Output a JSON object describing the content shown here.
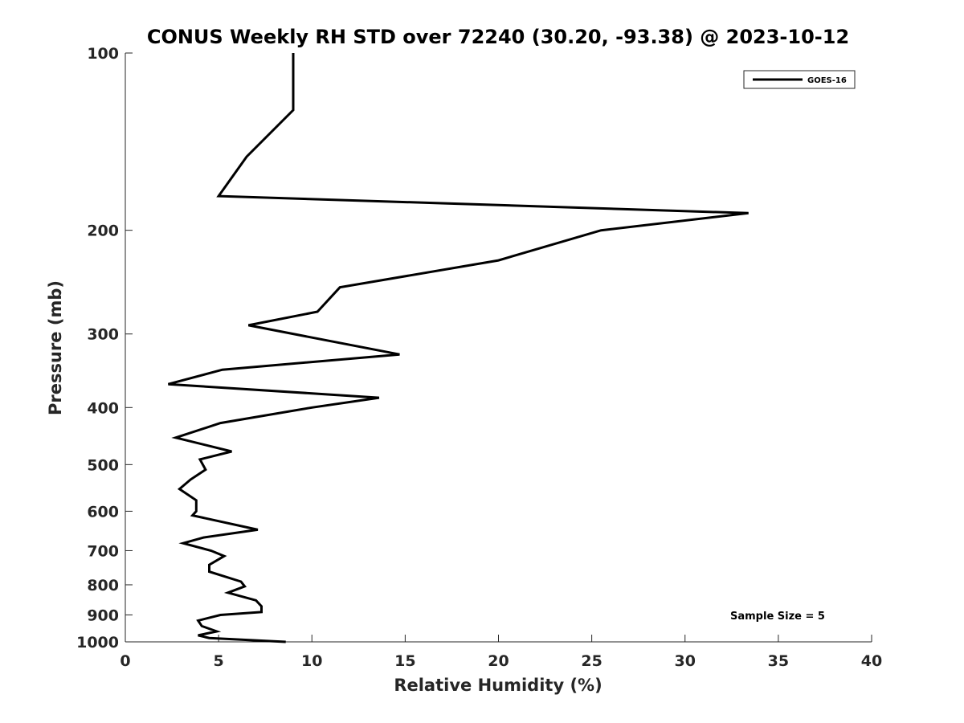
{
  "chart_data": {
    "type": "line",
    "title": "CONUS Weekly RH STD over 72240 (30.20, -93.38) @ 2023-10-12",
    "xlabel": "Relative Humidity (%)",
    "ylabel": "Pressure (mb)",
    "xlim": [
      0,
      40
    ],
    "ylim": [
      100,
      1000
    ],
    "yscale": "log",
    "y_reversed": true,
    "xticks": [
      0,
      5,
      10,
      15,
      20,
      25,
      30,
      35,
      40
    ],
    "yticks": [
      100,
      200,
      300,
      400,
      500,
      600,
      700,
      800,
      900,
      1000
    ],
    "grid": false,
    "legend_position": "top-right",
    "annotation": "Sample Size = 5",
    "series": [
      {
        "name": "GOES-16",
        "color": "#000000",
        "points": [
          [
            9.0,
            100
          ],
          [
            9.0,
            125
          ],
          [
            6.5,
            150
          ],
          [
            5.0,
            175
          ],
          [
            33.4,
            187
          ],
          [
            25.5,
            200
          ],
          [
            20.0,
            225
          ],
          [
            11.5,
            250
          ],
          [
            10.3,
            275
          ],
          [
            6.6,
            290
          ],
          [
            14.7,
            325
          ],
          [
            5.2,
            345
          ],
          [
            2.3,
            365
          ],
          [
            13.6,
            385
          ],
          [
            10.0,
            400
          ],
          [
            5.1,
            425
          ],
          [
            2.7,
            450
          ],
          [
            5.7,
            475
          ],
          [
            4.0,
            490
          ],
          [
            4.3,
            510
          ],
          [
            3.5,
            530
          ],
          [
            2.9,
            550
          ],
          [
            3.8,
            575
          ],
          [
            3.8,
            600
          ],
          [
            3.6,
            610
          ],
          [
            7.1,
            645
          ],
          [
            4.2,
            665
          ],
          [
            3.1,
            680
          ],
          [
            4.6,
            700
          ],
          [
            5.3,
            715
          ],
          [
            4.5,
            740
          ],
          [
            4.5,
            760
          ],
          [
            6.2,
            790
          ],
          [
            6.4,
            805
          ],
          [
            5.5,
            825
          ],
          [
            7.0,
            850
          ],
          [
            7.3,
            870
          ],
          [
            7.3,
            890
          ],
          [
            5.1,
            900
          ],
          [
            3.9,
            920
          ],
          [
            4.1,
            940
          ],
          [
            4.9,
            960
          ],
          [
            3.9,
            975
          ],
          [
            4.5,
            985
          ],
          [
            8.6,
            1000
          ]
        ]
      }
    ]
  }
}
